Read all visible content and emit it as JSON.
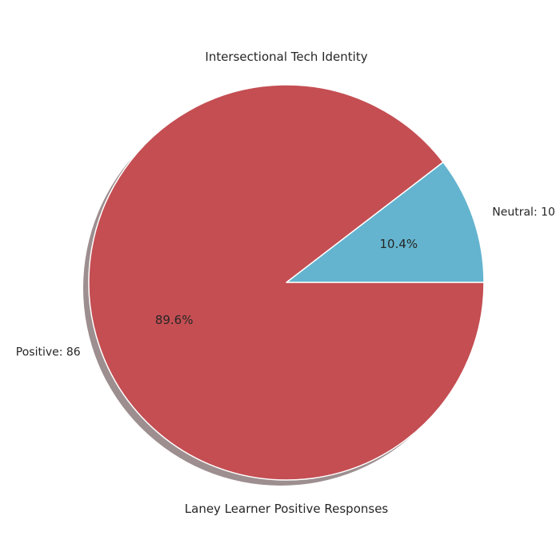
{
  "chart_data": {
    "type": "pie",
    "title": "Intersectional Tech Identity",
    "xlabel": "Laney Learner Positive Responses",
    "slices": [
      {
        "label": "Neutral: 10",
        "value": 10,
        "percent_label": "10.4%",
        "color": "#64b4cf"
      },
      {
        "label": "Positive: 86",
        "value": 86,
        "percent_label": "89.6%",
        "color": "#c44e52"
      }
    ],
    "start_angle_deg": 0,
    "direction": "counterclockwise",
    "shadow": true,
    "edge_color": "#ffffff"
  }
}
